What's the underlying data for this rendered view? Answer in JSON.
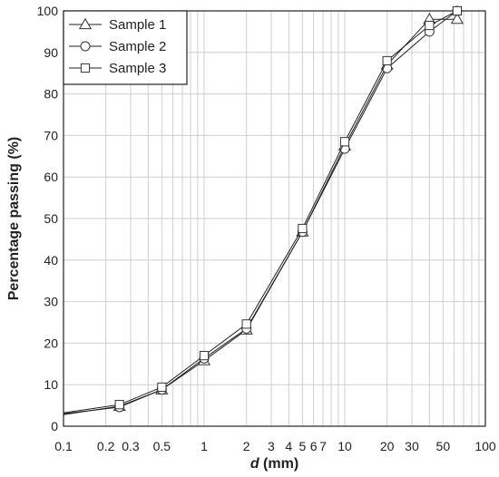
{
  "chart_data": {
    "type": "line",
    "xlabel_italic": "d",
    "xlabel_rest": " (mm)",
    "ylabel": "Percentage passing (%)",
    "x_scale": "log",
    "xlim": [
      0.1,
      100
    ],
    "ylim": [
      0,
      100
    ],
    "grid": true,
    "legend_position": "top-left",
    "x_ticks": [
      {
        "value": 0.1,
        "label": "0.1"
      },
      {
        "value": 0.2,
        "label": "0.2"
      },
      {
        "value": 0.3,
        "label": "0.3"
      },
      {
        "value": 0.5,
        "label": "0.5"
      },
      {
        "value": 1,
        "label": "1"
      },
      {
        "value": 2,
        "label": "2"
      },
      {
        "value": 3,
        "label": "3"
      },
      {
        "value": 4,
        "label": "4"
      },
      {
        "value": 5,
        "label": "5"
      },
      {
        "value": 6,
        "label": "6"
      },
      {
        "value": 7,
        "label": "7"
      },
      {
        "value": 10,
        "label": "10"
      },
      {
        "value": 20,
        "label": "20"
      },
      {
        "value": 30,
        "label": "30"
      },
      {
        "value": 50,
        "label": "50"
      },
      {
        "value": 100,
        "label": "100"
      }
    ],
    "y_ticks": [
      0,
      10,
      20,
      30,
      40,
      50,
      60,
      70,
      80,
      90,
      100
    ],
    "x_grid_values": [
      0.1,
      0.2,
      0.3,
      0.4,
      0.5,
      0.6,
      0.7,
      0.8,
      0.9,
      1,
      2,
      3,
      4,
      5,
      6,
      7,
      8,
      9,
      10,
      20,
      30,
      40,
      50,
      60,
      70,
      80,
      90,
      100
    ],
    "series": [
      {
        "name": "Sample 1",
        "marker": "triangle",
        "x": [
          0.1,
          0.25,
          0.5,
          1,
          2,
          5,
          10,
          20,
          40,
          63
        ],
        "y": [
          2.8,
          4.8,
          8.8,
          15.8,
          23.2,
          46.8,
          67.5,
          87.0,
          98.0,
          98.0
        ]
      },
      {
        "name": "Sample 2",
        "marker": "circle",
        "x": [
          0.1,
          0.25,
          0.5,
          1,
          2,
          5,
          10,
          20,
          40,
          63
        ],
        "y": [
          3.0,
          4.6,
          8.8,
          16.3,
          23.5,
          46.8,
          66.8,
          86.2,
          95.0,
          100.0
        ]
      },
      {
        "name": "Sample 3",
        "marker": "square",
        "x": [
          0.1,
          0.25,
          0.5,
          1,
          2,
          5,
          10,
          20,
          40,
          63
        ],
        "y": [
          3.2,
          5.2,
          9.4,
          17.0,
          24.6,
          47.6,
          68.5,
          88.0,
          96.5,
          100.0
        ]
      }
    ]
  }
}
